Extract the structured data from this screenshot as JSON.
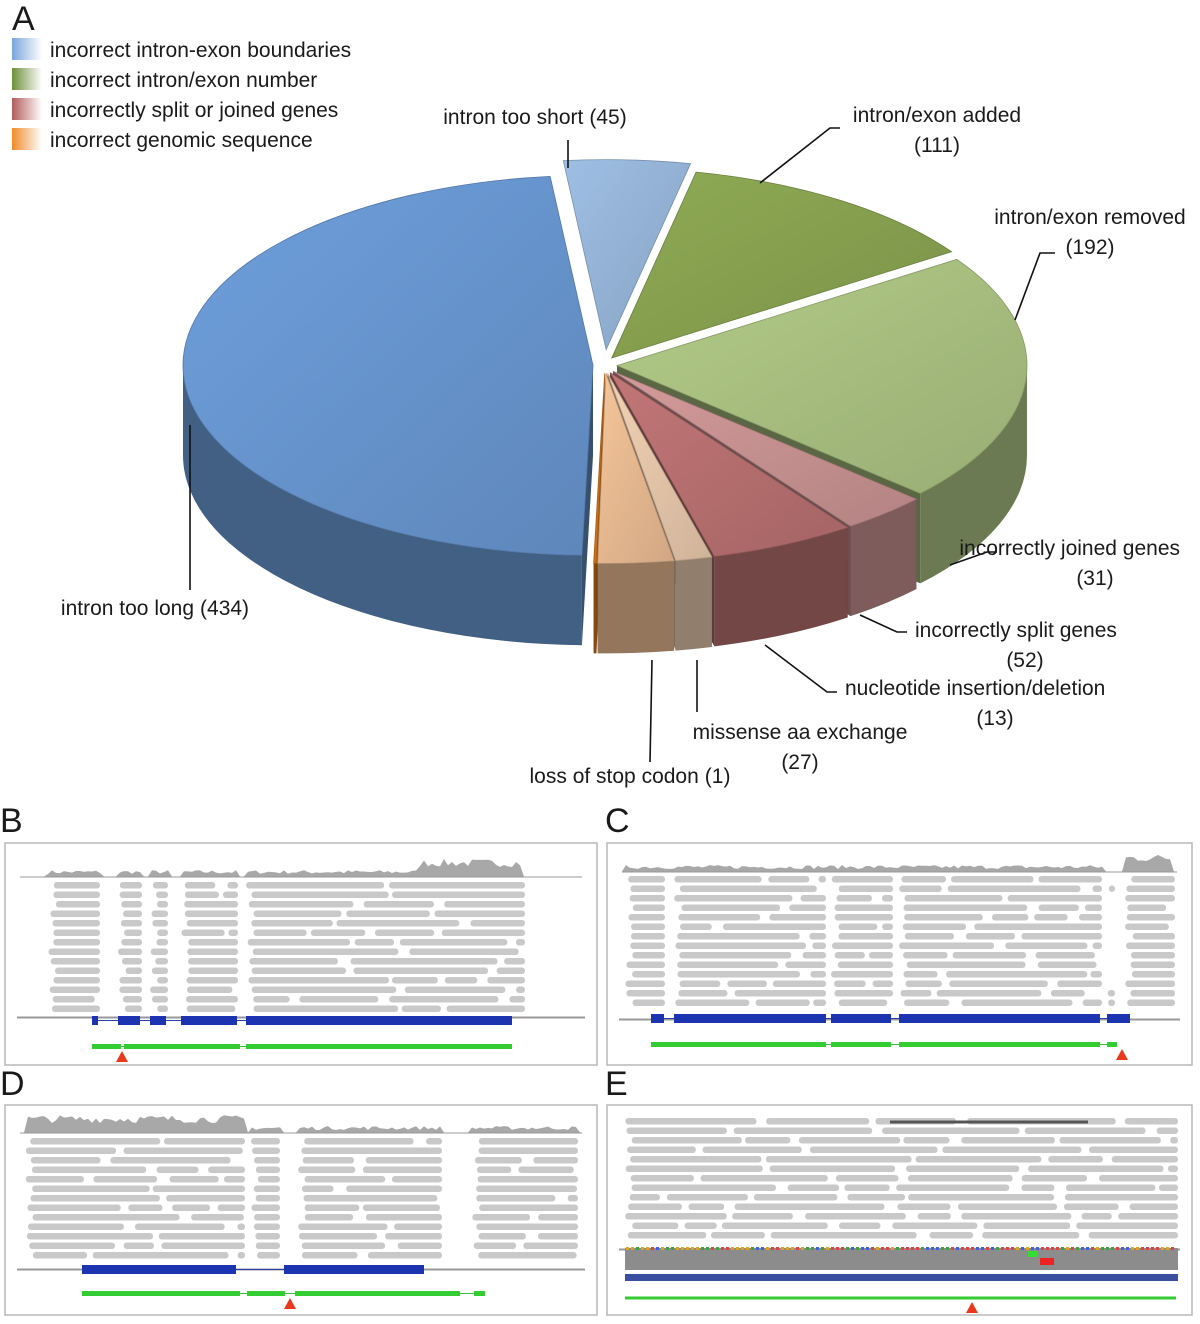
{
  "chart_data": {
    "type": "pie3d",
    "panel_label": "A",
    "categories": [
      "intron too short",
      "intron/exon added",
      "intron/exon removed",
      "incorrectly joined genes",
      "incorrectly split genes",
      "nucleotide insertion/deletion",
      "missense aa exchange",
      "loss of stop codon",
      "intron too long"
    ],
    "values": [
      45,
      111,
      192,
      31,
      52,
      13,
      27,
      1,
      434
    ],
    "value_labels": [
      "(45)",
      "(111)",
      "(192)",
      "(31)",
      "(52)",
      "(13)",
      "(27)",
      "(1)",
      "(434)"
    ],
    "colors": [
      "#9ebfe4",
      "#8fab55",
      "#b3cc88",
      "#d49a9a",
      "#c27676",
      "#f3d2b4",
      "#f6c59a",
      "#e07b18",
      "#6e9fdc"
    ],
    "legend": [
      {
        "name": "incorrect intron-exon boundaries",
        "color": "#7aa6dc"
      },
      {
        "name": "incorrect intron/exon number",
        "color": "#6f8f3a"
      },
      {
        "name": "incorrectly split or joined genes",
        "color": "#b35c5c"
      },
      {
        "name": "incorrect genomic sequence",
        "color": "#f08a2a"
      }
    ]
  },
  "panels": {
    "labels": [
      "B",
      "C",
      "D",
      "E"
    ]
  }
}
